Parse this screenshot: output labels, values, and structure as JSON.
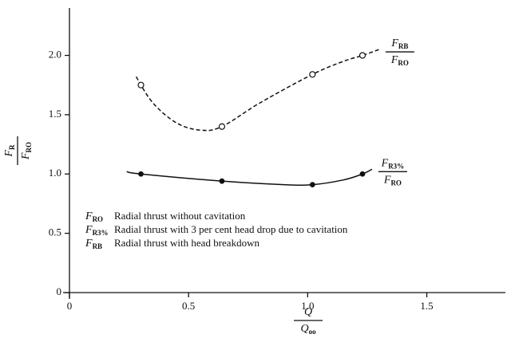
{
  "chart_data": {
    "type": "line",
    "xlim": [
      0,
      1.83
    ],
    "ylim": [
      0,
      2.4
    ],
    "xticks": [
      0,
      0.5,
      {
        "value": 1,
        "label": "1.0"
      },
      1.5
    ],
    "yticks": [
      0,
      0.5,
      {
        "value": 1,
        "label": "1.0"
      },
      1.5,
      {
        "value": 2,
        "label": "2.0"
      }
    ],
    "xlabel": {
      "num": "Q",
      "den": "Q",
      "den_sub": "oo"
    },
    "ylabel": {
      "num": "F",
      "num_sub": "R",
      "den": "F",
      "den_sub": "RO"
    },
    "series": [
      {
        "style": "dashed",
        "marker": "open",
        "color": "#111",
        "label": {
          "num": "F",
          "num_sub": "RB",
          "den": "F",
          "den_sub": "RO"
        },
        "x": [
          0.28,
          0.35,
          0.45,
          0.55,
          0.64,
          0.8,
          1.02,
          1.15,
          1.23,
          1.3
        ],
        "values": [
          1.82,
          1.6,
          1.43,
          1.37,
          1.4,
          1.6,
          1.84,
          1.95,
          2.0,
          2.05
        ],
        "markers": {
          "x": [
            0.3,
            0.64,
            1.02,
            1.23
          ],
          "values": [
            1.75,
            1.4,
            1.84,
            2.0
          ]
        }
      },
      {
        "style": "solid",
        "marker": "filled",
        "color": "#111",
        "label": {
          "num": "F",
          "num_sub": "R3%",
          "den": "F",
          "den_sub": "RO"
        },
        "x": [
          0.24,
          0.3,
          0.64,
          0.9,
          1.02,
          1.15,
          1.23,
          1.27
        ],
        "values": [
          1.02,
          1.0,
          0.94,
          0.91,
          0.91,
          0.95,
          1.0,
          1.04
        ],
        "markers": {
          "x": [
            0.3,
            0.64,
            1.02,
            1.23
          ],
          "values": [
            1.0,
            0.94,
            0.91,
            1.0
          ]
        }
      }
    ],
    "legend": [
      {
        "symbol": "F",
        "sub": "RO",
        "text": "Radial thrust without cavitation"
      },
      {
        "symbol": "F",
        "sub": "R3%",
        "text": "Radial thrust with 3 per cent head drop due to cavitation"
      },
      {
        "symbol": "F",
        "sub": "RB",
        "text": "Radial thrust with head breakdown"
      }
    ]
  }
}
